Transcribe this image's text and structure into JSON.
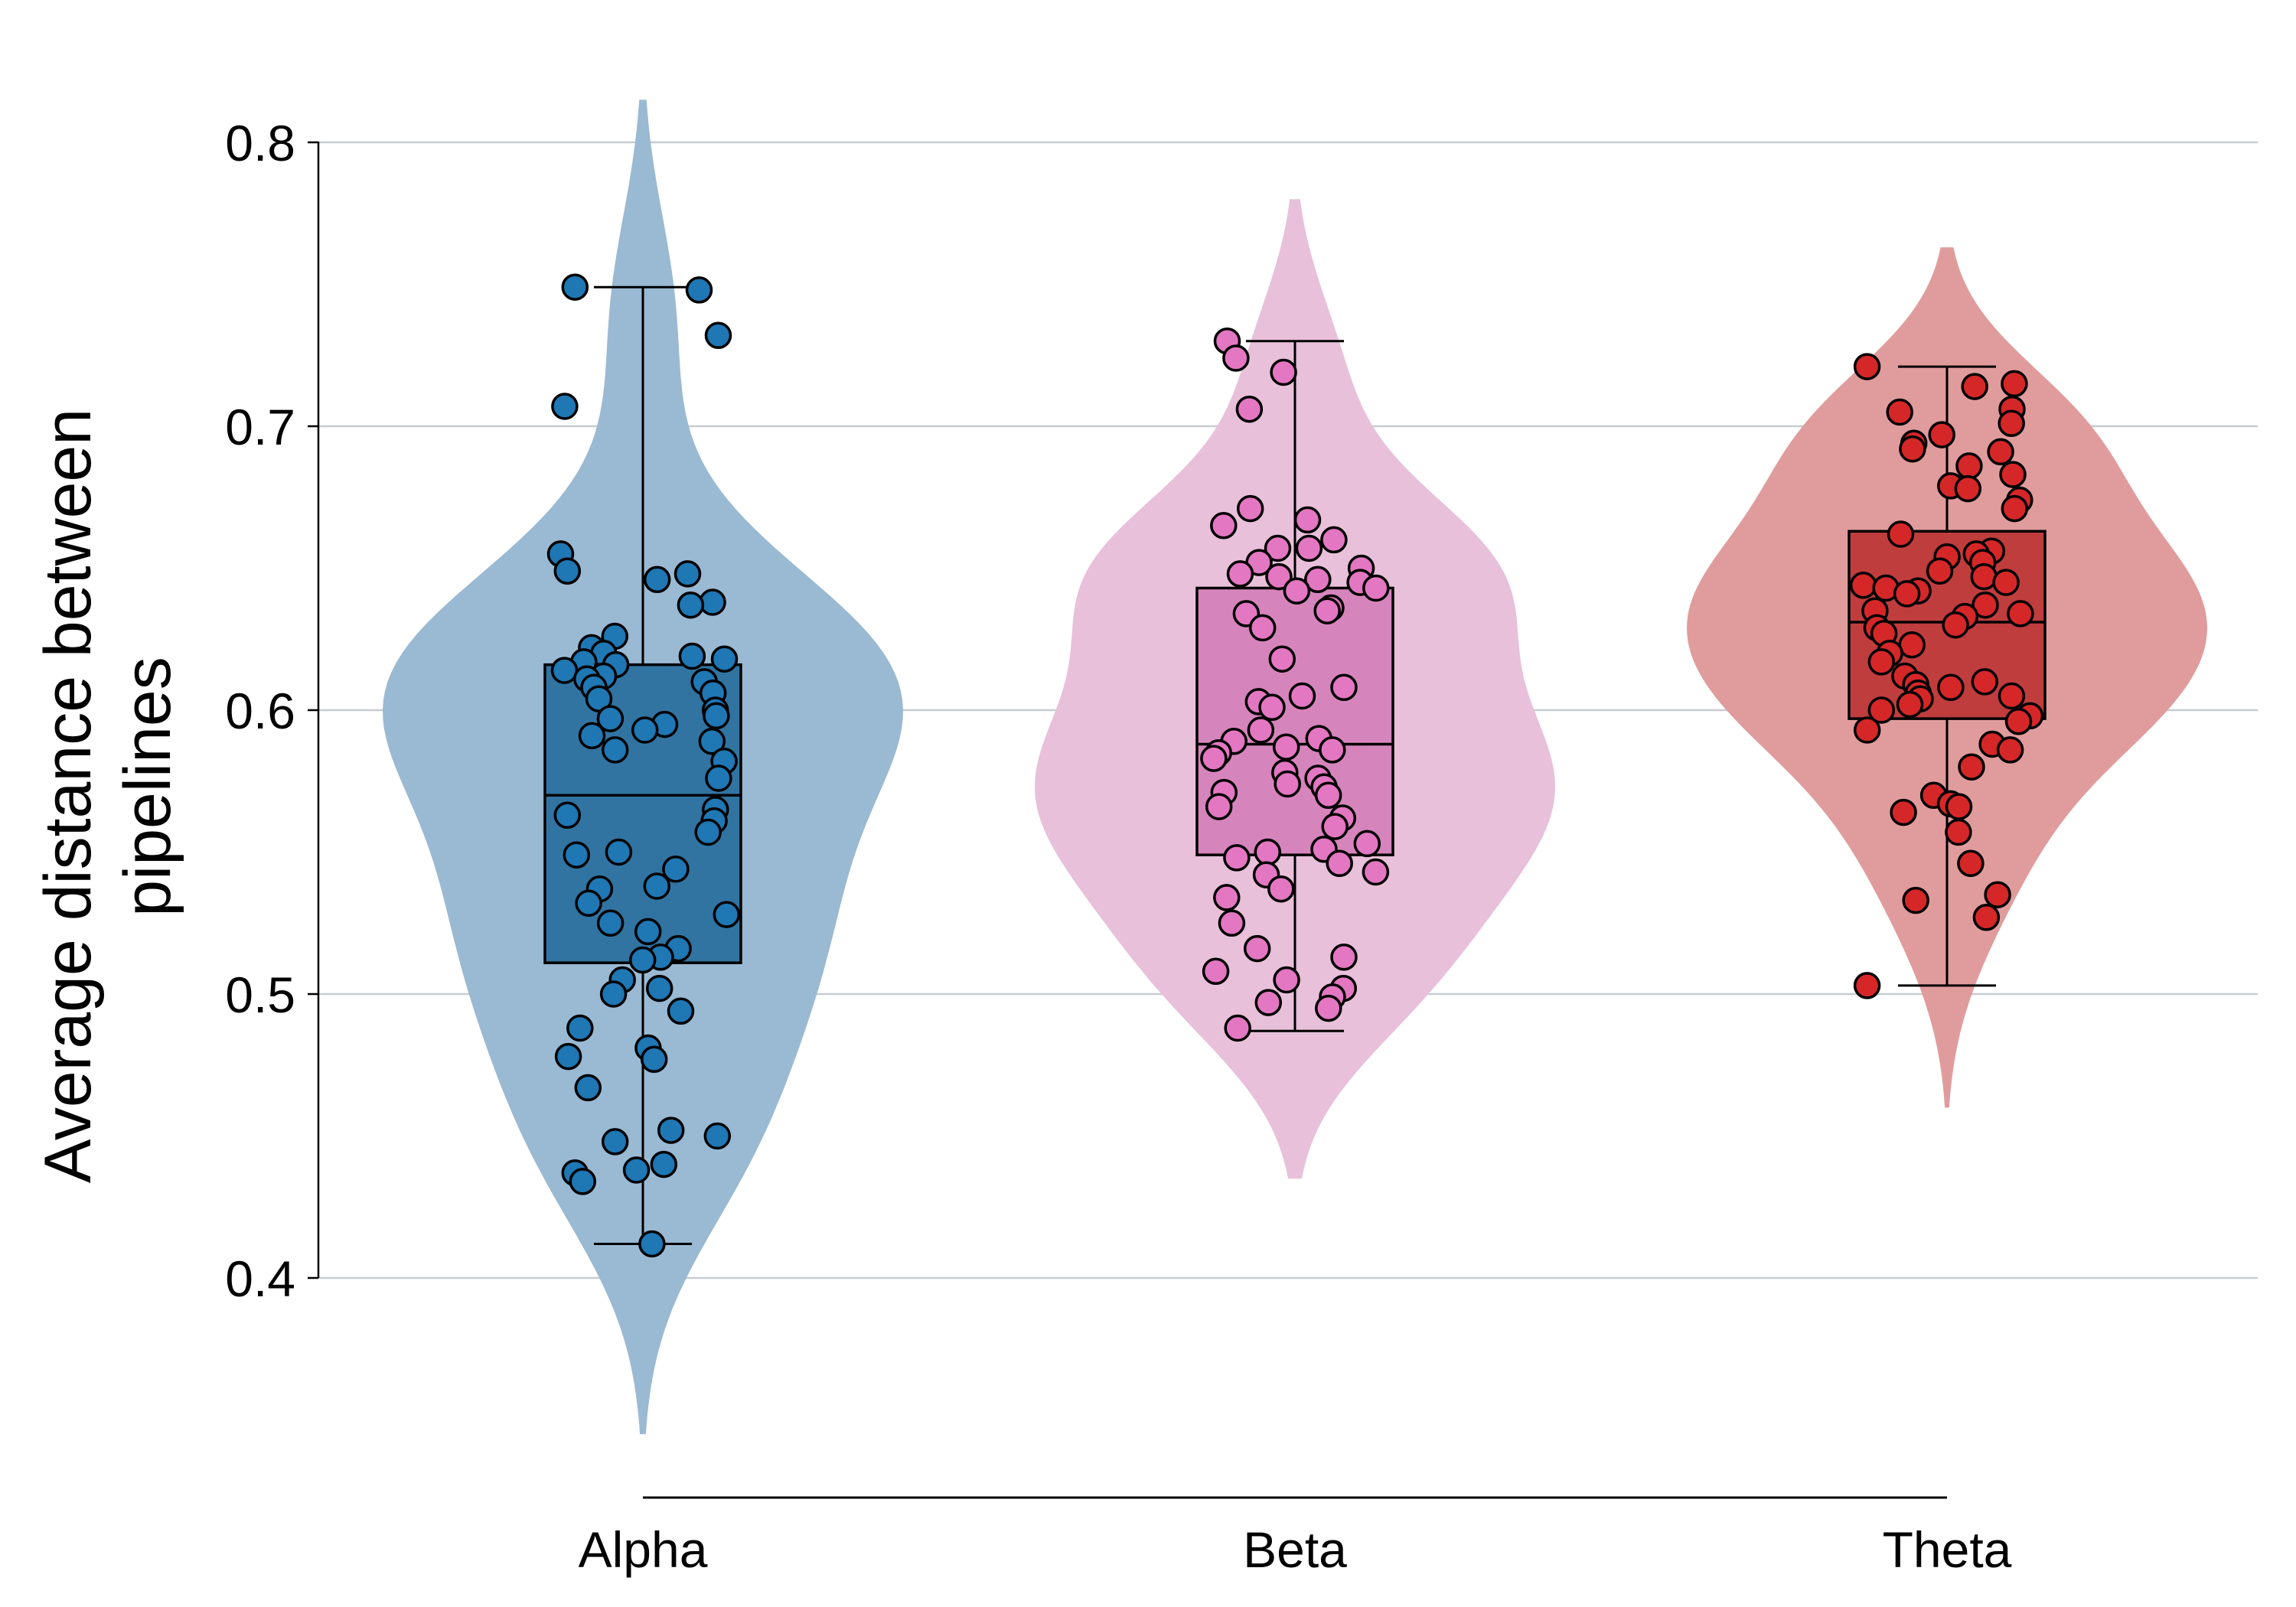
{
  "chart_data": {
    "type": "violin",
    "title": "",
    "ylabel_lines": [
      "Average distance between",
      "pipelines"
    ],
    "xlabel": "",
    "ylim": [
      0.35,
      0.82
    ],
    "yticks": [
      0.4,
      0.5,
      0.6,
      0.7,
      0.8
    ],
    "ytick_labels": [
      "0.4",
      "0.5",
      "0.6",
      "0.7",
      "0.8"
    ],
    "grid": "horizontal",
    "legend": "none",
    "categories": [
      "Alpha",
      "Beta",
      "Theta"
    ],
    "series": [
      {
        "category": "Alpha",
        "violin_color": "#9ab9d3",
        "box_color": "#3274a1",
        "point_color": "#1f77b4",
        "box": {
          "whisker_low": 0.412,
          "q1": 0.511,
          "median": 0.57,
          "q3": 0.616,
          "whisker_high": 0.749
        },
        "violin_range": [
          0.345,
          0.815
        ],
        "points": [
          0.749,
          0.748,
          0.732,
          0.707,
          0.655,
          0.649,
          0.648,
          0.646,
          0.638,
          0.637,
          0.626,
          0.622,
          0.62,
          0.619,
          0.618,
          0.617,
          0.616,
          0.614,
          0.612,
          0.611,
          0.61,
          0.608,
          0.606,
          0.604,
          0.6,
          0.598,
          0.597,
          0.595,
          0.593,
          0.591,
          0.589,
          0.586,
          0.582,
          0.576,
          0.565,
          0.563,
          0.561,
          0.557,
          0.55,
          0.549,
          0.544,
          0.538,
          0.537,
          0.532,
          0.528,
          0.525,
          0.522,
          0.516,
          0.513,
          0.512,
          0.505,
          0.502,
          0.5,
          0.494,
          0.488,
          0.481,
          0.478,
          0.477,
          0.467,
          0.452,
          0.45,
          0.448,
          0.44,
          0.438,
          0.437,
          0.434,
          0.412
        ]
      },
      {
        "category": "Beta",
        "violin_color": "#e8c0da",
        "box_color": "#d685bc",
        "point_color": "#e377c2",
        "box": {
          "whisker_low": 0.487,
          "q1": 0.549,
          "median": 0.588,
          "q3": 0.643,
          "whisker_high": 0.73
        },
        "violin_range": [
          0.435,
          0.78
        ],
        "points": [
          0.73,
          0.724,
          0.719,
          0.706,
          0.671,
          0.667,
          0.665,
          0.66,
          0.657,
          0.657,
          0.652,
          0.65,
          0.648,
          0.647,
          0.646,
          0.645,
          0.643,
          0.642,
          0.636,
          0.635,
          0.634,
          0.629,
          0.618,
          0.608,
          0.605,
          0.603,
          0.601,
          0.593,
          0.59,
          0.589,
          0.587,
          0.586,
          0.585,
          0.583,
          0.578,
          0.576,
          0.574,
          0.573,
          0.571,
          0.57,
          0.566,
          0.562,
          0.559,
          0.553,
          0.551,
          0.55,
          0.548,
          0.546,
          0.543,
          0.542,
          0.537,
          0.534,
          0.525,
          0.516,
          0.513,
          0.508,
          0.505,
          0.502,
          0.499,
          0.497,
          0.495,
          0.488
        ]
      },
      {
        "category": "Theta",
        "violin_color": "#e09c9c",
        "box_color": "#c03d3e",
        "point_color": "#d62728",
        "box": {
          "whisker_low": 0.503,
          "q1": 0.597,
          "median": 0.631,
          "q3": 0.663,
          "whisker_high": 0.721
        },
        "violin_range": [
          0.46,
          0.763
        ],
        "points": [
          0.721,
          0.715,
          0.714,
          0.706,
          0.705,
          0.701,
          0.697,
          0.694,
          0.692,
          0.691,
          0.686,
          0.683,
          0.679,
          0.678,
          0.674,
          0.671,
          0.662,
          0.656,
          0.655,
          0.654,
          0.652,
          0.649,
          0.647,
          0.645,
          0.644,
          0.643,
          0.642,
          0.641,
          0.637,
          0.635,
          0.634,
          0.633,
          0.63,
          0.629,
          0.627,
          0.623,
          0.62,
          0.617,
          0.612,
          0.61,
          0.609,
          0.608,
          0.606,
          0.605,
          0.604,
          0.602,
          0.6,
          0.598,
          0.596,
          0.593,
          0.588,
          0.586,
          0.58,
          0.57,
          0.567,
          0.566,
          0.564,
          0.557,
          0.546,
          0.535,
          0.533,
          0.527,
          0.503
        ]
      }
    ]
  }
}
